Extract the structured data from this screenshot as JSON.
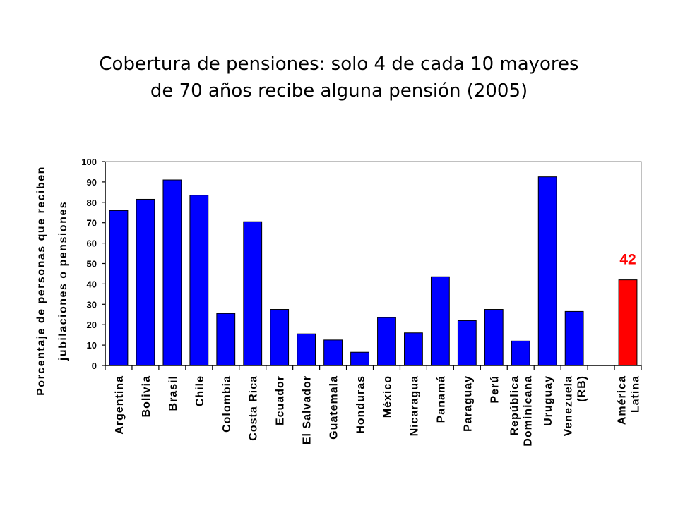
{
  "title": {
    "line1": "Cobertura de pensiones:  solo 4 de cada 10 mayores",
    "line2": "de 70 años recibe alguna pensión  (2005)"
  },
  "colors": {
    "bar": "#0000ff",
    "highlight": "#ff0000",
    "axis": "#000000"
  },
  "chart_data": {
    "type": "bar",
    "categories": [
      [
        "Argentina"
      ],
      [
        "Bolivia"
      ],
      [
        "Brasil"
      ],
      [
        "Chile"
      ],
      [
        "Colombia"
      ],
      [
        "Costa Rica"
      ],
      [
        "Ecuador"
      ],
      [
        "El Salvador"
      ],
      [
        "Guatemala"
      ],
      [
        "Honduras"
      ],
      [
        "México"
      ],
      [
        "Nicaragua"
      ],
      [
        "Panamá"
      ],
      [
        "Paraguay"
      ],
      [
        "Perú"
      ],
      [
        "República",
        "Dominicana"
      ],
      [
        "Uruguay"
      ],
      [
        "Venezuela",
        "(RB)"
      ],
      [],
      [
        "América",
        "Latina"
      ]
    ],
    "values": [
      76,
      81.5,
      91,
      83.5,
      25.5,
      70.5,
      27.5,
      15.5,
      12.5,
      6.5,
      23.5,
      16,
      43.5,
      22,
      27.5,
      12,
      92.5,
      26.5,
      null,
      42
    ],
    "highlight_index": 19,
    "highlight_label": "42",
    "ylabel_lines": [
      "Porcentaje de personas que reciben",
      "jubilaciones o pensiones"
    ],
    "ylim": [
      0,
      100
    ],
    "yticks": [
      0,
      10,
      20,
      30,
      40,
      50,
      60,
      70,
      80,
      90,
      100
    ],
    "grid": false,
    "legend": "none"
  }
}
